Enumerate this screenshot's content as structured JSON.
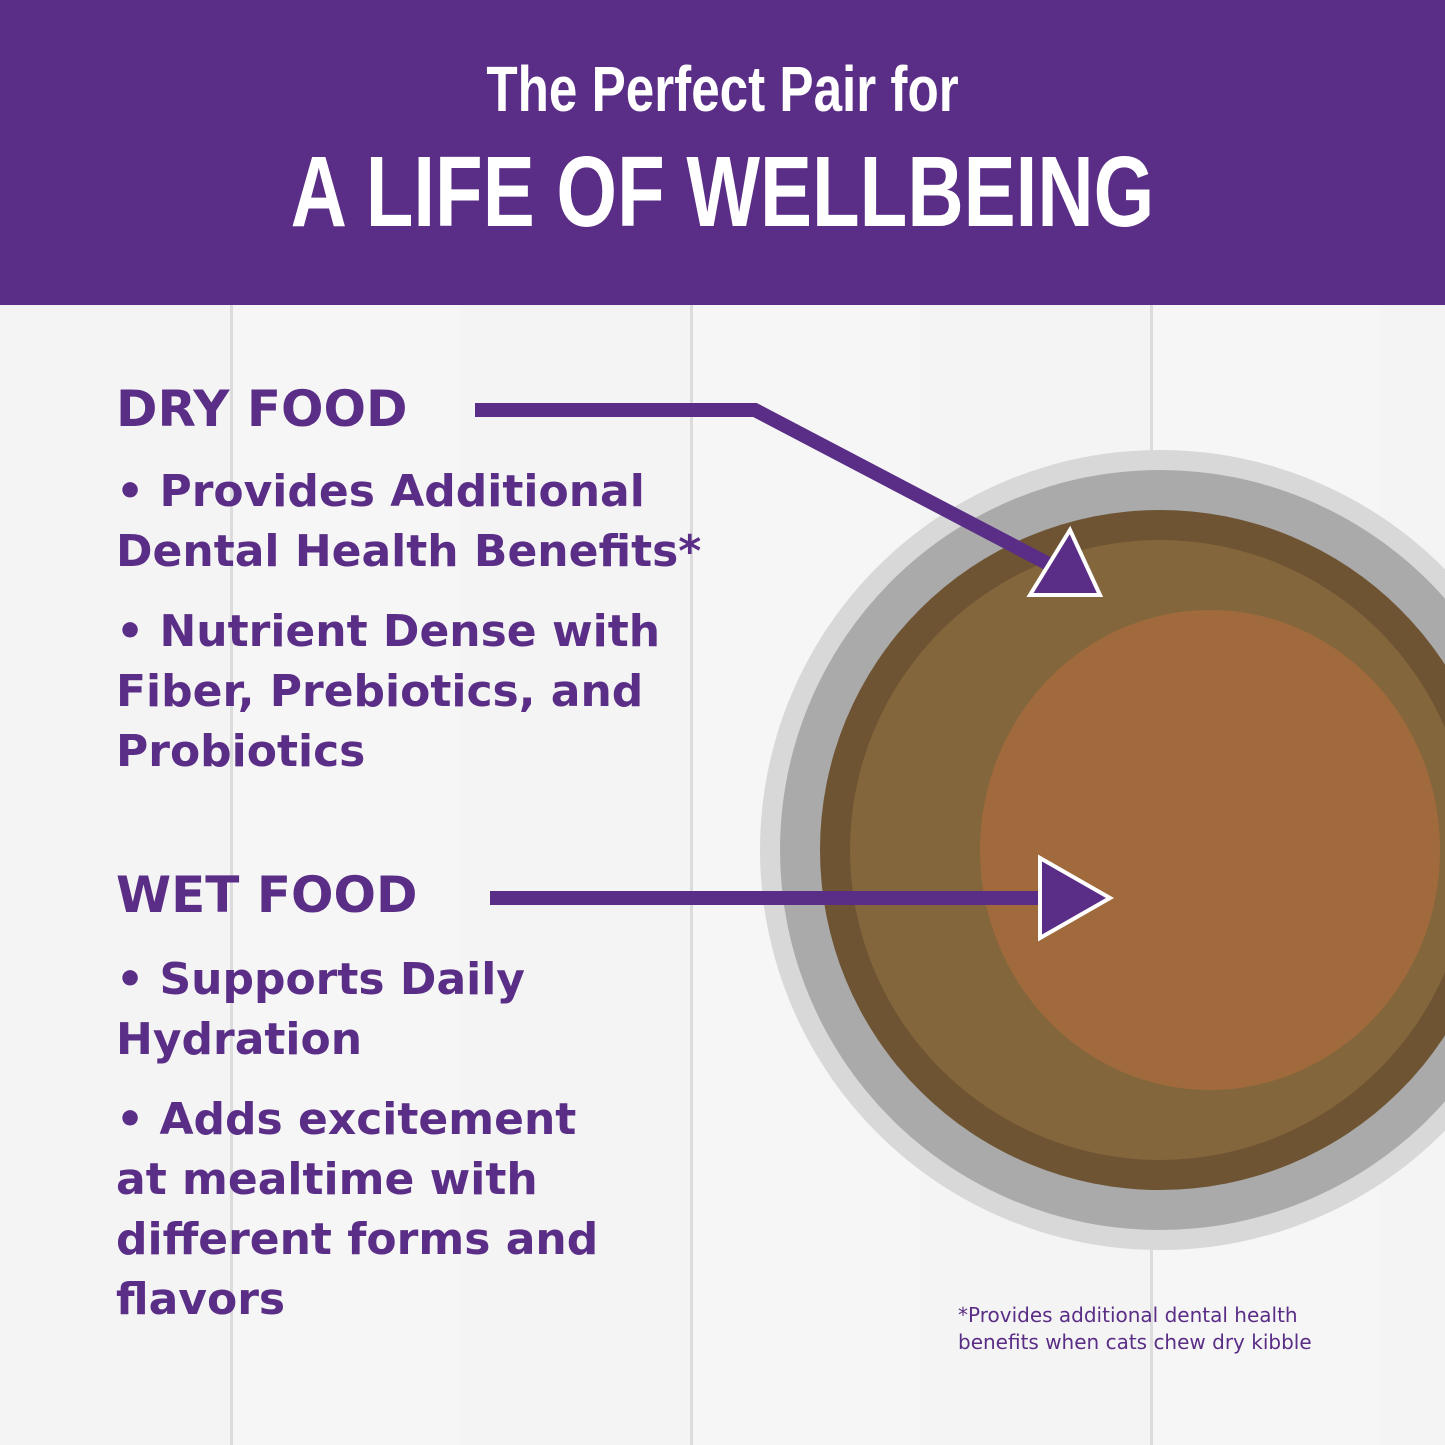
{
  "header": {
    "subtitle": "The Perfect Pair for",
    "title": "A LIFE OF WELLBEING"
  },
  "dry": {
    "heading": "DRY FOOD",
    "bullets": [
      "• Provides Additional Dental Health Benefits*",
      "• Nutrient Dense with Fiber, Prebiotics, and Probiotics"
    ]
  },
  "wet": {
    "heading": "WET FOOD",
    "bullets": [
      "• Supports Daily Hydration",
      "• Adds excitement at mealtime with different forms and flavors"
    ]
  },
  "footnote": "*Provides additional dental health benefits when cats chew dry kibble",
  "colors": {
    "brand": "#5a2d86"
  }
}
